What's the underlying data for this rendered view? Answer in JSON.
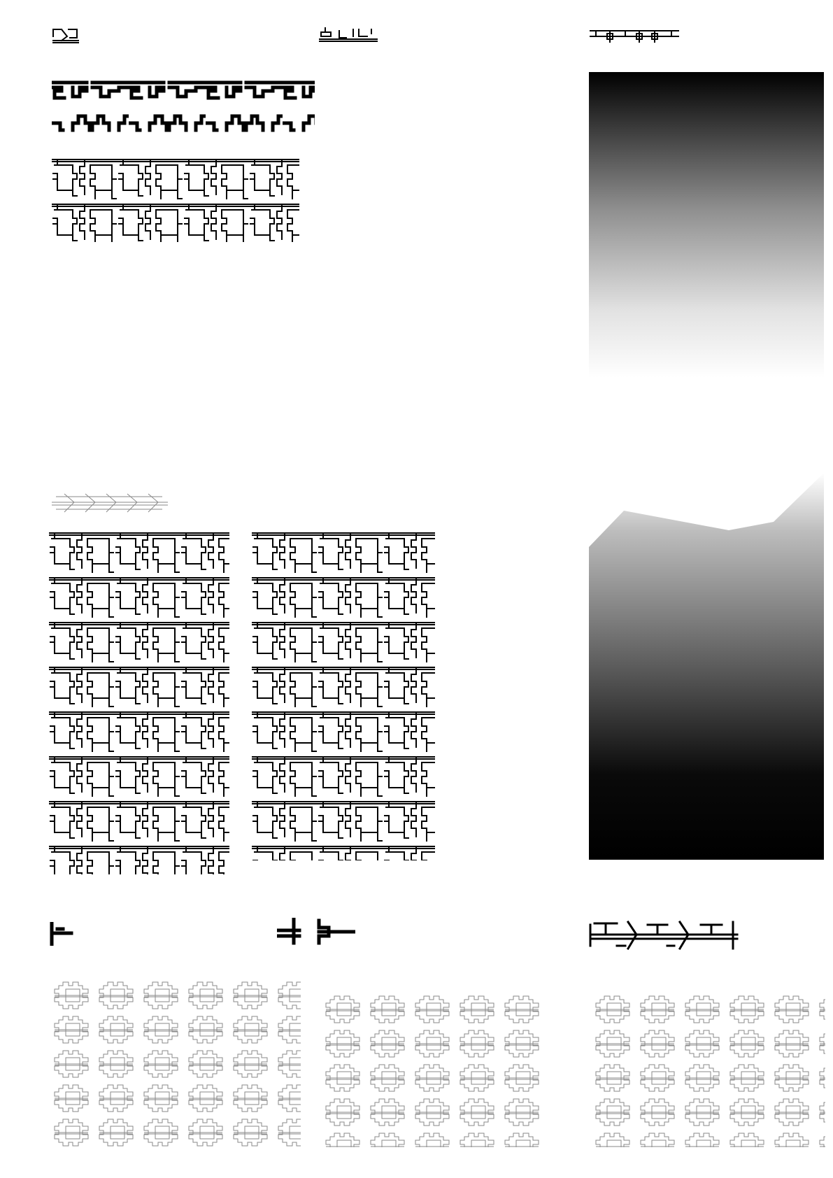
{
  "page": {
    "background": "#ffffff",
    "ink_color": "#000000",
    "faint_ink_color": "#8a8a8a"
  },
  "elements": {
    "glyph_marks_top": [
      "glyph-mark-icon",
      "glyph-mark-icon",
      "glyph-mark-icon"
    ],
    "glyph_marks_bottom": [
      "glyph-mark-icon",
      "glyph-mark-icon",
      "glyph-mark-icon"
    ],
    "pattern_blocks": [
      "thick-frieze-pattern",
      "maze-pattern-small",
      "maze-pattern-large-left",
      "maze-pattern-large-right",
      "faint-tile-pattern-left",
      "faint-tile-pattern-middle",
      "faint-tile-pattern-right"
    ],
    "gradients": [
      {
        "name": "gradient-panel-top",
        "from": "#000000",
        "to": "#ffffff"
      },
      {
        "name": "gradient-panel-bottom",
        "from": "#ffffff",
        "to": "#000000"
      }
    ]
  }
}
